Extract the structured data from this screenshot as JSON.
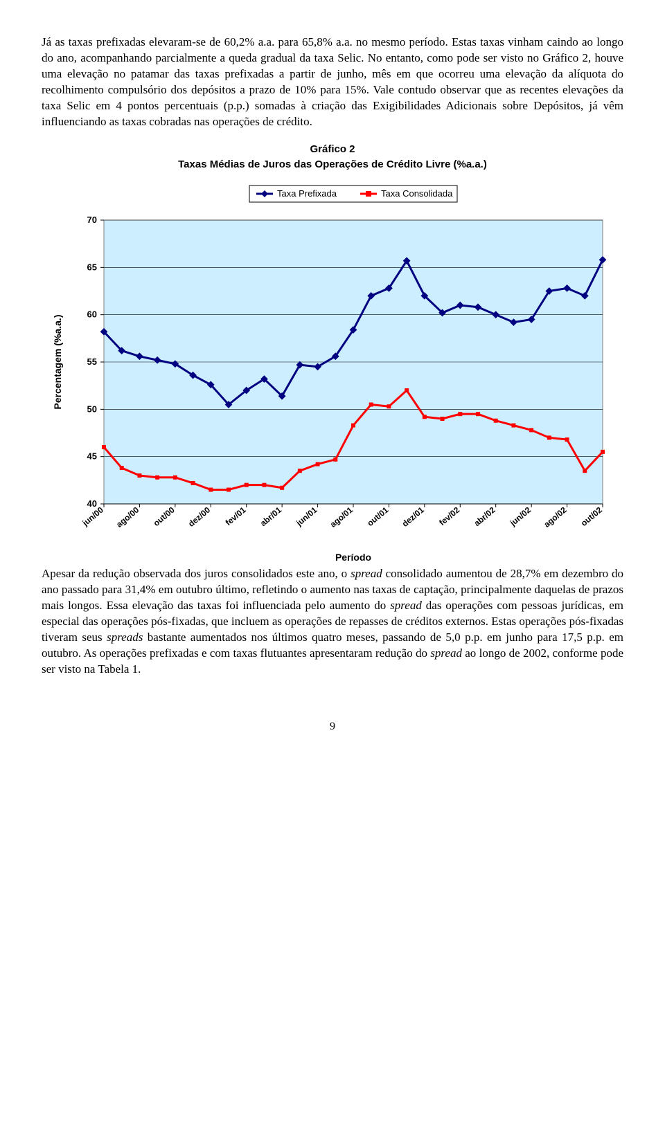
{
  "paragraph1": "Já as taxas prefixadas elevaram-se de 60,2% a.a. para 65,8% a.a. no mesmo período. Estas taxas vinham caindo ao longo do ano, acompanhando parcialmente a queda gradual da taxa Selic. No entanto, como pode ser visto no Gráfico 2, houve uma elevação no patamar das taxas prefixadas a partir de junho, mês em que ocorreu uma elevação da alíquota do recolhimento compulsório dos depósitos a prazo de 10% para 15%. Vale contudo observar que as recentes elevações da taxa Selic em 4 pontos percentuais (p.p.) somadas à criação das Exigibilidades Adicionais sobre Depósitos, já vêm influenciando as taxas cobradas nas operações de crédito.",
  "paragraph2_parts": {
    "a": "Apesar da redução observada dos juros consolidados este ano, o ",
    "b": "spread",
    "c": " consolidado aumentou de 28,7% em dezembro do ano passado para 31,4% em outubro último, refletindo o aumento nas taxas de captação, principalmente daquelas de prazos mais longos. Essa elevação das taxas foi influenciada pelo aumento do ",
    "d": "spread",
    "e": " das operações com pessoas jurídicas, em especial das operações pós-fixadas, que incluem as operações de repasses de créditos externos. Estas operações pós-fixadas tiveram seus ",
    "f": "spreads",
    "g": " bastante aumentados nos últimos quatro meses, passando de 5,0 p.p. em junho para 17,5 p.p. em outubro. As operações prefixadas e com taxas flutuantes apresentaram redução do ",
    "h": "spread",
    "i": " ao longo de 2002, conforme pode ser visto na Tabela 1."
  },
  "page_number": "9",
  "chart": {
    "type": "line",
    "title": "Gráfico 2",
    "subtitle": "Taxas Médias de Juros das Operações de Crédito Livre (%a.a.)",
    "y_axis_label": "Percentagem (%a.a.)",
    "x_axis_label": "Período",
    "background_color": "#cceeff",
    "border_color": "#808080",
    "grid_color": "#000000",
    "ylim": [
      40,
      70
    ],
    "ytick_step": 5,
    "x_categories": [
      "jun/00",
      "jul/00",
      "ago/00",
      "set/00",
      "out/00",
      "nov/00",
      "dez/00",
      "jan/01",
      "fev/01",
      "mar/01",
      "abr/01",
      "mai/01",
      "jun/01",
      "jul/01",
      "ago/01",
      "set/01",
      "out/01",
      "nov/01",
      "dez/01",
      "jan/02",
      "fev/02",
      "mar/02",
      "abr/02",
      "mai/02",
      "jun/02",
      "jul/02",
      "ago/02",
      "set/02",
      "out/02"
    ],
    "x_labels_shown": [
      "jun/00",
      "ago/00",
      "out/00",
      "dez/00",
      "fev/01",
      "abr/01",
      "jun/01",
      "ago/01",
      "out/01",
      "dez/01",
      "fev/02",
      "abr/02",
      "jun/02",
      "ago/02",
      "out/02"
    ],
    "series": [
      {
        "name": "Taxa Prefixada",
        "color": "#000080",
        "marker": "diamond",
        "marker_size": 7,
        "line_width": 3,
        "values": [
          58.2,
          56.2,
          55.6,
          55.2,
          54.8,
          53.6,
          52.6,
          50.5,
          52.0,
          53.2,
          51.4,
          54.7,
          54.5,
          55.6,
          58.4,
          62.0,
          62.8,
          65.7,
          62.0,
          60.2,
          61.0,
          60.8,
          60.0,
          59.2,
          59.5,
          62.5,
          62.8,
          62.0,
          65.8
        ]
      },
      {
        "name": "Taxa Consolidada",
        "color": "#ff0000",
        "marker": "square",
        "marker_size": 6,
        "line_width": 3,
        "values": [
          46.0,
          43.8,
          43.0,
          42.8,
          42.8,
          42.2,
          41.5,
          41.5,
          42.0,
          42.0,
          41.7,
          43.5,
          44.2,
          44.7,
          48.3,
          50.5,
          50.3,
          52.0,
          49.2,
          49.0,
          49.5,
          49.5,
          48.8,
          48.3,
          47.8,
          47.0,
          46.8,
          43.5,
          45.5
        ]
      }
    ],
    "legend_border": "#000000",
    "label_fontsize": 13
  }
}
